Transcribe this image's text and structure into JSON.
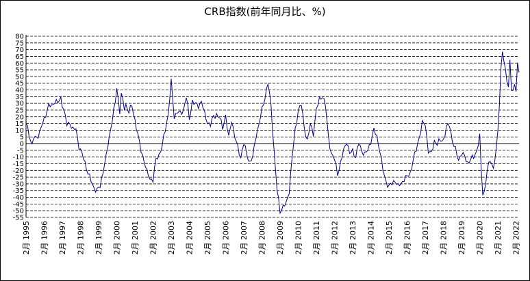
{
  "chart_data": {
    "type": "line",
    "title": "CRB指数(前年同月比、%)",
    "xlabel": "",
    "ylabel": "",
    "ylim": [
      -55,
      80
    ],
    "yticks": [
      80,
      75,
      70,
      65,
      60,
      55,
      50,
      45,
      40,
      35,
      30,
      25,
      20,
      15,
      10,
      5,
      0,
      -5,
      -10,
      -15,
      -20,
      -25,
      -30,
      -35,
      -40,
      -45,
      -50,
      -55
    ],
    "grid": "horizontal-dashed",
    "line_color": "#00008b",
    "x_start": "1995-02",
    "x_tick_labels": [
      "2月 1995",
      "2月 1996",
      "2月 1997",
      "2月 1998",
      "2月 1999",
      "2月 2000",
      "2月 2001",
      "2月 2002",
      "2月 2003",
      "2月 2004",
      "2月 2005",
      "2月 2006",
      "2月 2007",
      "2月 2008",
      "2月 2009",
      "2月 2010",
      "2月 2011",
      "2月 2012",
      "2月 2013",
      "2月 2014",
      "2月 2015",
      "2月 2016",
      "2月 2017",
      "2月 2018",
      "2月 2019",
      "2月 2020",
      "2月 2021",
      "2月 2022"
    ],
    "x_ticks": [
      "1995-02",
      "1996-02",
      "1997-02",
      "1998-02",
      "1999-02",
      "2000-02",
      "2001-02",
      "2002-02",
      "2003-02",
      "2004-02",
      "2005-02",
      "2006-02",
      "2007-02",
      "2008-02",
      "2009-02",
      "2010-02",
      "2011-02",
      "2012-02",
      "2013-02",
      "2014-02",
      "2015-02",
      "2016-02",
      "2017-02",
      "2018-02",
      "2019-02",
      "2020-02",
      "2021-02",
      "2022-02"
    ],
    "anchors": [
      [
        "1995-02",
        15
      ],
      [
        "1995-03",
        12
      ],
      [
        "1995-05",
        3
      ],
      [
        "1995-06",
        -2
      ],
      [
        "1995-07",
        4
      ],
      [
        "1995-09",
        5
      ],
      [
        "1995-11",
        8
      ],
      [
        "1996-01",
        15
      ],
      [
        "1996-03",
        22
      ],
      [
        "1996-05",
        28
      ],
      [
        "1996-07",
        28
      ],
      [
        "1996-09",
        32
      ],
      [
        "1996-11",
        30
      ],
      [
        "1997-01",
        34
      ],
      [
        "1997-03",
        25
      ],
      [
        "1997-05",
        14
      ],
      [
        "1997-07",
        16
      ],
      [
        "1997-09",
        10
      ],
      [
        "1997-11",
        11
      ],
      [
        "1998-01",
        -2
      ],
      [
        "1998-03",
        -8
      ],
      [
        "1998-05",
        -14
      ],
      [
        "1998-07",
        -22
      ],
      [
        "1998-09",
        -28
      ],
      [
        "1998-11",
        -33
      ],
      [
        "1999-01",
        -35
      ],
      [
        "1999-03",
        -32
      ],
      [
        "1999-05",
        -20
      ],
      [
        "1999-07",
        -10
      ],
      [
        "1999-09",
        5
      ],
      [
        "1999-11",
        18
      ],
      [
        "2000-01",
        30
      ],
      [
        "2000-02",
        42
      ],
      [
        "2000-04",
        24
      ],
      [
        "2000-05",
        37
      ],
      [
        "2000-07",
        26
      ],
      [
        "2000-08",
        29
      ],
      [
        "2000-10",
        24
      ],
      [
        "2000-12",
        28
      ],
      [
        "2001-02",
        18
      ],
      [
        "2001-04",
        6
      ],
      [
        "2001-06",
        -5
      ],
      [
        "2001-08",
        -12
      ],
      [
        "2001-10",
        -22
      ],
      [
        "2001-12",
        -26
      ],
      [
        "2002-02",
        -27
      ],
      [
        "2002-04",
        -12
      ],
      [
        "2002-06",
        -8
      ],
      [
        "2002-08",
        -2
      ],
      [
        "2002-10",
        10
      ],
      [
        "2002-12",
        22
      ],
      [
        "2003-02",
        46
      ],
      [
        "2003-04",
        20
      ],
      [
        "2003-06",
        24
      ],
      [
        "2003-08",
        22
      ],
      [
        "2003-10",
        25
      ],
      [
        "2003-12",
        35
      ],
      [
        "2004-02",
        18
      ],
      [
        "2004-04",
        32
      ],
      [
        "2004-06",
        29
      ],
      [
        "2004-08",
        28
      ],
      [
        "2004-10",
        32
      ],
      [
        "2004-12",
        22
      ],
      [
        "2005-02",
        16
      ],
      [
        "2005-04",
        14
      ],
      [
        "2005-06",
        20
      ],
      [
        "2005-08",
        22
      ],
      [
        "2005-10",
        19
      ],
      [
        "2005-12",
        12
      ],
      [
        "2006-02",
        21
      ],
      [
        "2006-04",
        4
      ],
      [
        "2006-06",
        18
      ],
      [
        "2006-08",
        5
      ],
      [
        "2006-10",
        -3
      ],
      [
        "2006-12",
        -10
      ],
      [
        "2007-02",
        0
      ],
      [
        "2007-04",
        -8
      ],
      [
        "2007-06",
        -14
      ],
      [
        "2007-08",
        -10
      ],
      [
        "2007-10",
        6
      ],
      [
        "2007-12",
        14
      ],
      [
        "2008-02",
        25
      ],
      [
        "2008-04",
        35
      ],
      [
        "2008-06",
        45
      ],
      [
        "2008-08",
        28
      ],
      [
        "2008-10",
        -5
      ],
      [
        "2008-12",
        -35
      ],
      [
        "2009-02",
        -50
      ],
      [
        "2009-04",
        -47
      ],
      [
        "2009-06",
        -45
      ],
      [
        "2009-08",
        -35
      ],
      [
        "2009-10",
        -10
      ],
      [
        "2009-12",
        10
      ],
      [
        "2010-02",
        25
      ],
      [
        "2010-04",
        29
      ],
      [
        "2010-06",
        12
      ],
      [
        "2010-08",
        2
      ],
      [
        "2010-10",
        14
      ],
      [
        "2010-12",
        8
      ],
      [
        "2011-02",
        25
      ],
      [
        "2011-04",
        33
      ],
      [
        "2011-06",
        36
      ],
      [
        "2011-08",
        28
      ],
      [
        "2011-10",
        5
      ],
      [
        "2011-12",
        -8
      ],
      [
        "2012-02",
        -12
      ],
      [
        "2012-04",
        -22
      ],
      [
        "2012-06",
        -15
      ],
      [
        "2012-08",
        -5
      ],
      [
        "2012-10",
        2
      ],
      [
        "2012-12",
        -8
      ],
      [
        "2013-02",
        -5
      ],
      [
        "2013-04",
        -10
      ],
      [
        "2013-06",
        0
      ],
      [
        "2013-08",
        -5
      ],
      [
        "2013-10",
        -8
      ],
      [
        "2013-12",
        -5
      ],
      [
        "2014-02",
        2
      ],
      [
        "2014-04",
        10
      ],
      [
        "2014-06",
        5
      ],
      [
        "2014-08",
        -5
      ],
      [
        "2014-10",
        -20
      ],
      [
        "2014-12",
        -28
      ],
      [
        "2015-02",
        -32
      ],
      [
        "2015-04",
        -30
      ],
      [
        "2015-06",
        -27
      ],
      [
        "2015-08",
        -32
      ],
      [
        "2015-10",
        -30
      ],
      [
        "2015-12",
        -26
      ],
      [
        "2016-02",
        -25
      ],
      [
        "2016-04",
        -22
      ],
      [
        "2016-06",
        -12
      ],
      [
        "2016-08",
        -5
      ],
      [
        "2016-10",
        5
      ],
      [
        "2016-12",
        15
      ],
      [
        "2017-02",
        14
      ],
      [
        "2017-04",
        -5
      ],
      [
        "2017-06",
        -8
      ],
      [
        "2017-08",
        2
      ],
      [
        "2017-10",
        0
      ],
      [
        "2017-12",
        2
      ],
      [
        "2018-02",
        3
      ],
      [
        "2018-04",
        12
      ],
      [
        "2018-06",
        14
      ],
      [
        "2018-08",
        2
      ],
      [
        "2018-10",
        -5
      ],
      [
        "2018-12",
        -12
      ],
      [
        "2019-02",
        -7
      ],
      [
        "2019-04",
        -10
      ],
      [
        "2019-06",
        -14
      ],
      [
        "2019-08",
        -12
      ],
      [
        "2019-10",
        -10
      ],
      [
        "2019-12",
        -5
      ],
      [
        "2020-02",
        5
      ],
      [
        "2020-03",
        -20
      ],
      [
        "2020-04",
        -37
      ],
      [
        "2020-05",
        -36
      ],
      [
        "2020-07",
        -20
      ],
      [
        "2020-09",
        -12
      ],
      [
        "2020-11",
        -18
      ],
      [
        "2021-01",
        -5
      ],
      [
        "2021-02",
        10
      ],
      [
        "2021-03",
        30
      ],
      [
        "2021-04",
        55
      ],
      [
        "2021-05",
        70
      ],
      [
        "2021-06",
        60
      ],
      [
        "2021-08",
        48
      ],
      [
        "2021-09",
        42
      ],
      [
        "2021-10",
        63
      ],
      [
        "2021-11",
        40
      ],
      [
        "2021-12",
        37
      ],
      [
        "2022-01",
        45
      ],
      [
        "2022-02",
        40
      ],
      [
        "2022-03",
        60
      ],
      [
        "2022-04",
        53
      ]
    ]
  }
}
